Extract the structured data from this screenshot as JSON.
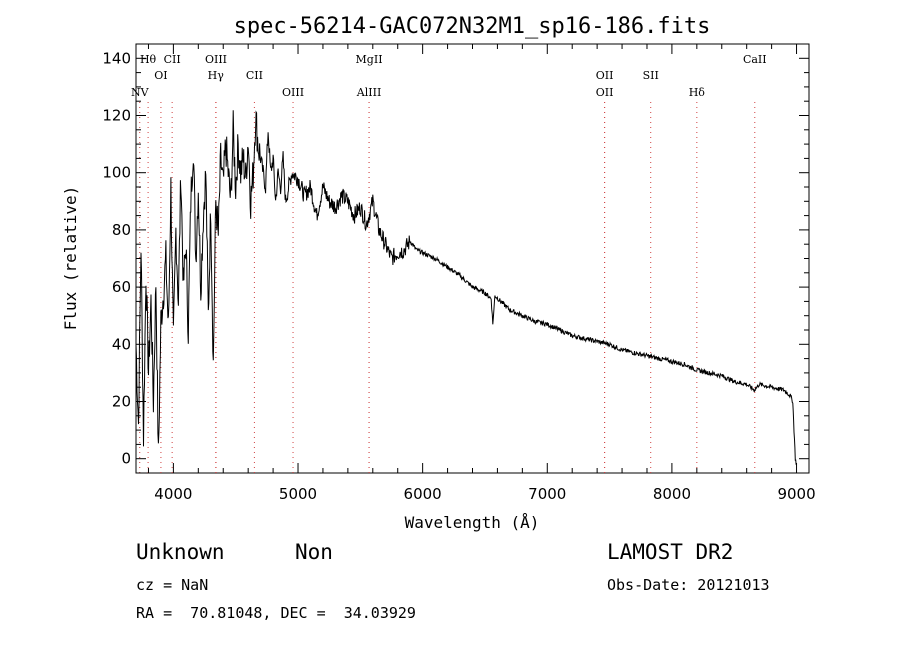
{
  "chart_data": {
    "type": "line",
    "title": "spec-56214-GAC072N32M1_sp16-186.fits",
    "xlabel": "Wavelength (Å)",
    "ylabel": "Flux (relative)",
    "xlim": [
      3700,
      9100
    ],
    "ylim": [
      -5,
      145
    ],
    "xticks": [
      "4000",
      "5000",
      "6000",
      "7000",
      "8000",
      "9000"
    ],
    "yticks": [
      "0",
      "20",
      "40",
      "60",
      "80",
      "100",
      "120",
      "140"
    ],
    "grid": false,
    "series": [
      {
        "x": [
          3700,
          3720,
          3740,
          3760,
          3780,
          3800,
          3820,
          3840,
          3860,
          3880,
          3900,
          3920,
          3940,
          3960,
          3980,
          4000,
          4020,
          4040,
          4060,
          4080,
          4100,
          4120,
          4140,
          4160,
          4180,
          4200,
          4220,
          4240,
          4260,
          4280,
          4300,
          4320,
          4340,
          4360,
          4380,
          4400,
          4420,
          4440,
          4460,
          4480,
          4500,
          4520,
          4540,
          4560,
          4580,
          4600,
          4620,
          4640,
          4660,
          4680,
          4700,
          4720,
          4740,
          4760,
          4780,
          4800,
          4820,
          4840,
          4860,
          4880,
          4900,
          4950,
          5000,
          5050,
          5100,
          5150,
          5200,
          5250,
          5300,
          5350,
          5400,
          5450,
          5500,
          5550,
          5600,
          5650,
          5700,
          5750,
          5800,
          5850,
          5900,
          5950,
          6000,
          6100,
          6200,
          6300,
          6400,
          6500,
          6550,
          6563,
          6580,
          6650,
          6700,
          6800,
          6900,
          7000,
          7100,
          7200,
          7300,
          7400,
          7500,
          7600,
          7700,
          7800,
          7900,
          8000,
          8100,
          8200,
          8300,
          8400,
          8500,
          8600,
          8660,
          8700,
          8800,
          8900,
          8950,
          8970,
          8980,
          8990,
          9000
        ],
        "y": [
          40,
          12,
          75,
          8,
          65,
          30,
          55,
          20,
          62,
          0,
          48,
          58,
          70,
          45,
          95,
          40,
          80,
          55,
          100,
          60,
          75,
          45,
          90,
          110,
          70,
          95,
          60,
          85,
          100,
          50,
          88,
          33,
          90,
          78,
          105,
          95,
          110,
          100,
          90,
          115,
          95,
          110,
          100,
          105,
          98,
          112,
          90,
          100,
          120,
          110,
          105,
          100,
          95,
          115,
          100,
          105,
          90,
          100,
          95,
          105,
          90,
          100,
          98,
          92,
          95,
          85,
          95,
          90,
          88,
          92,
          90,
          85,
          88,
          82,
          90,
          80,
          75,
          70,
          72,
          73,
          76,
          73,
          72,
          70,
          67,
          64,
          60,
          58,
          56,
          47,
          57,
          54,
          52,
          50,
          48,
          47,
          45,
          43,
          42,
          41,
          40,
          38,
          37,
          36,
          35,
          34,
          33,
          31,
          30,
          29,
          27,
          26,
          24,
          26,
          25,
          24,
          22,
          20,
          10,
          0,
          -2
        ]
      }
    ],
    "lines": [
      {
        "label": "Hθ",
        "x": 3797,
        "row": 1
      },
      {
        "label": "NV",
        "x": 3730,
        "row": 3
      },
      {
        "label": "OI",
        "x": 3900,
        "row": 2
      },
      {
        "label": "CII",
        "x": 3990,
        "row": 1
      },
      {
        "label": "OIII",
        "x": 4342,
        "row": 1
      },
      {
        "label": "Hγ",
        "x": 4340,
        "row": 2
      },
      {
        "label": "CII",
        "x": 4650,
        "row": 2
      },
      {
        "label": "OIII",
        "x": 4960,
        "row": 3
      },
      {
        "label": "MgII",
        "x": 5570,
        "row": 1
      },
      {
        "label": "AlIII",
        "x": 5570,
        "row": 3
      },
      {
        "label": "OII",
        "x": 7460,
        "row": 2
      },
      {
        "label": "OII",
        "x": 7460,
        "row": 3
      },
      {
        "label": "SII",
        "x": 7830,
        "row": 2
      },
      {
        "label": "Hδ",
        "x": 8200,
        "row": 3
      },
      {
        "label": "CaII",
        "x": 8665,
        "row": 1
      }
    ]
  },
  "info": {
    "class": "Unknown",
    "subclass": "Non",
    "survey": "LAMOST DR2",
    "cz": "cz = NaN",
    "obs_date": "Obs-Date: 20121013",
    "coords": "RA =  70.81048, DEC =  34.03929"
  }
}
